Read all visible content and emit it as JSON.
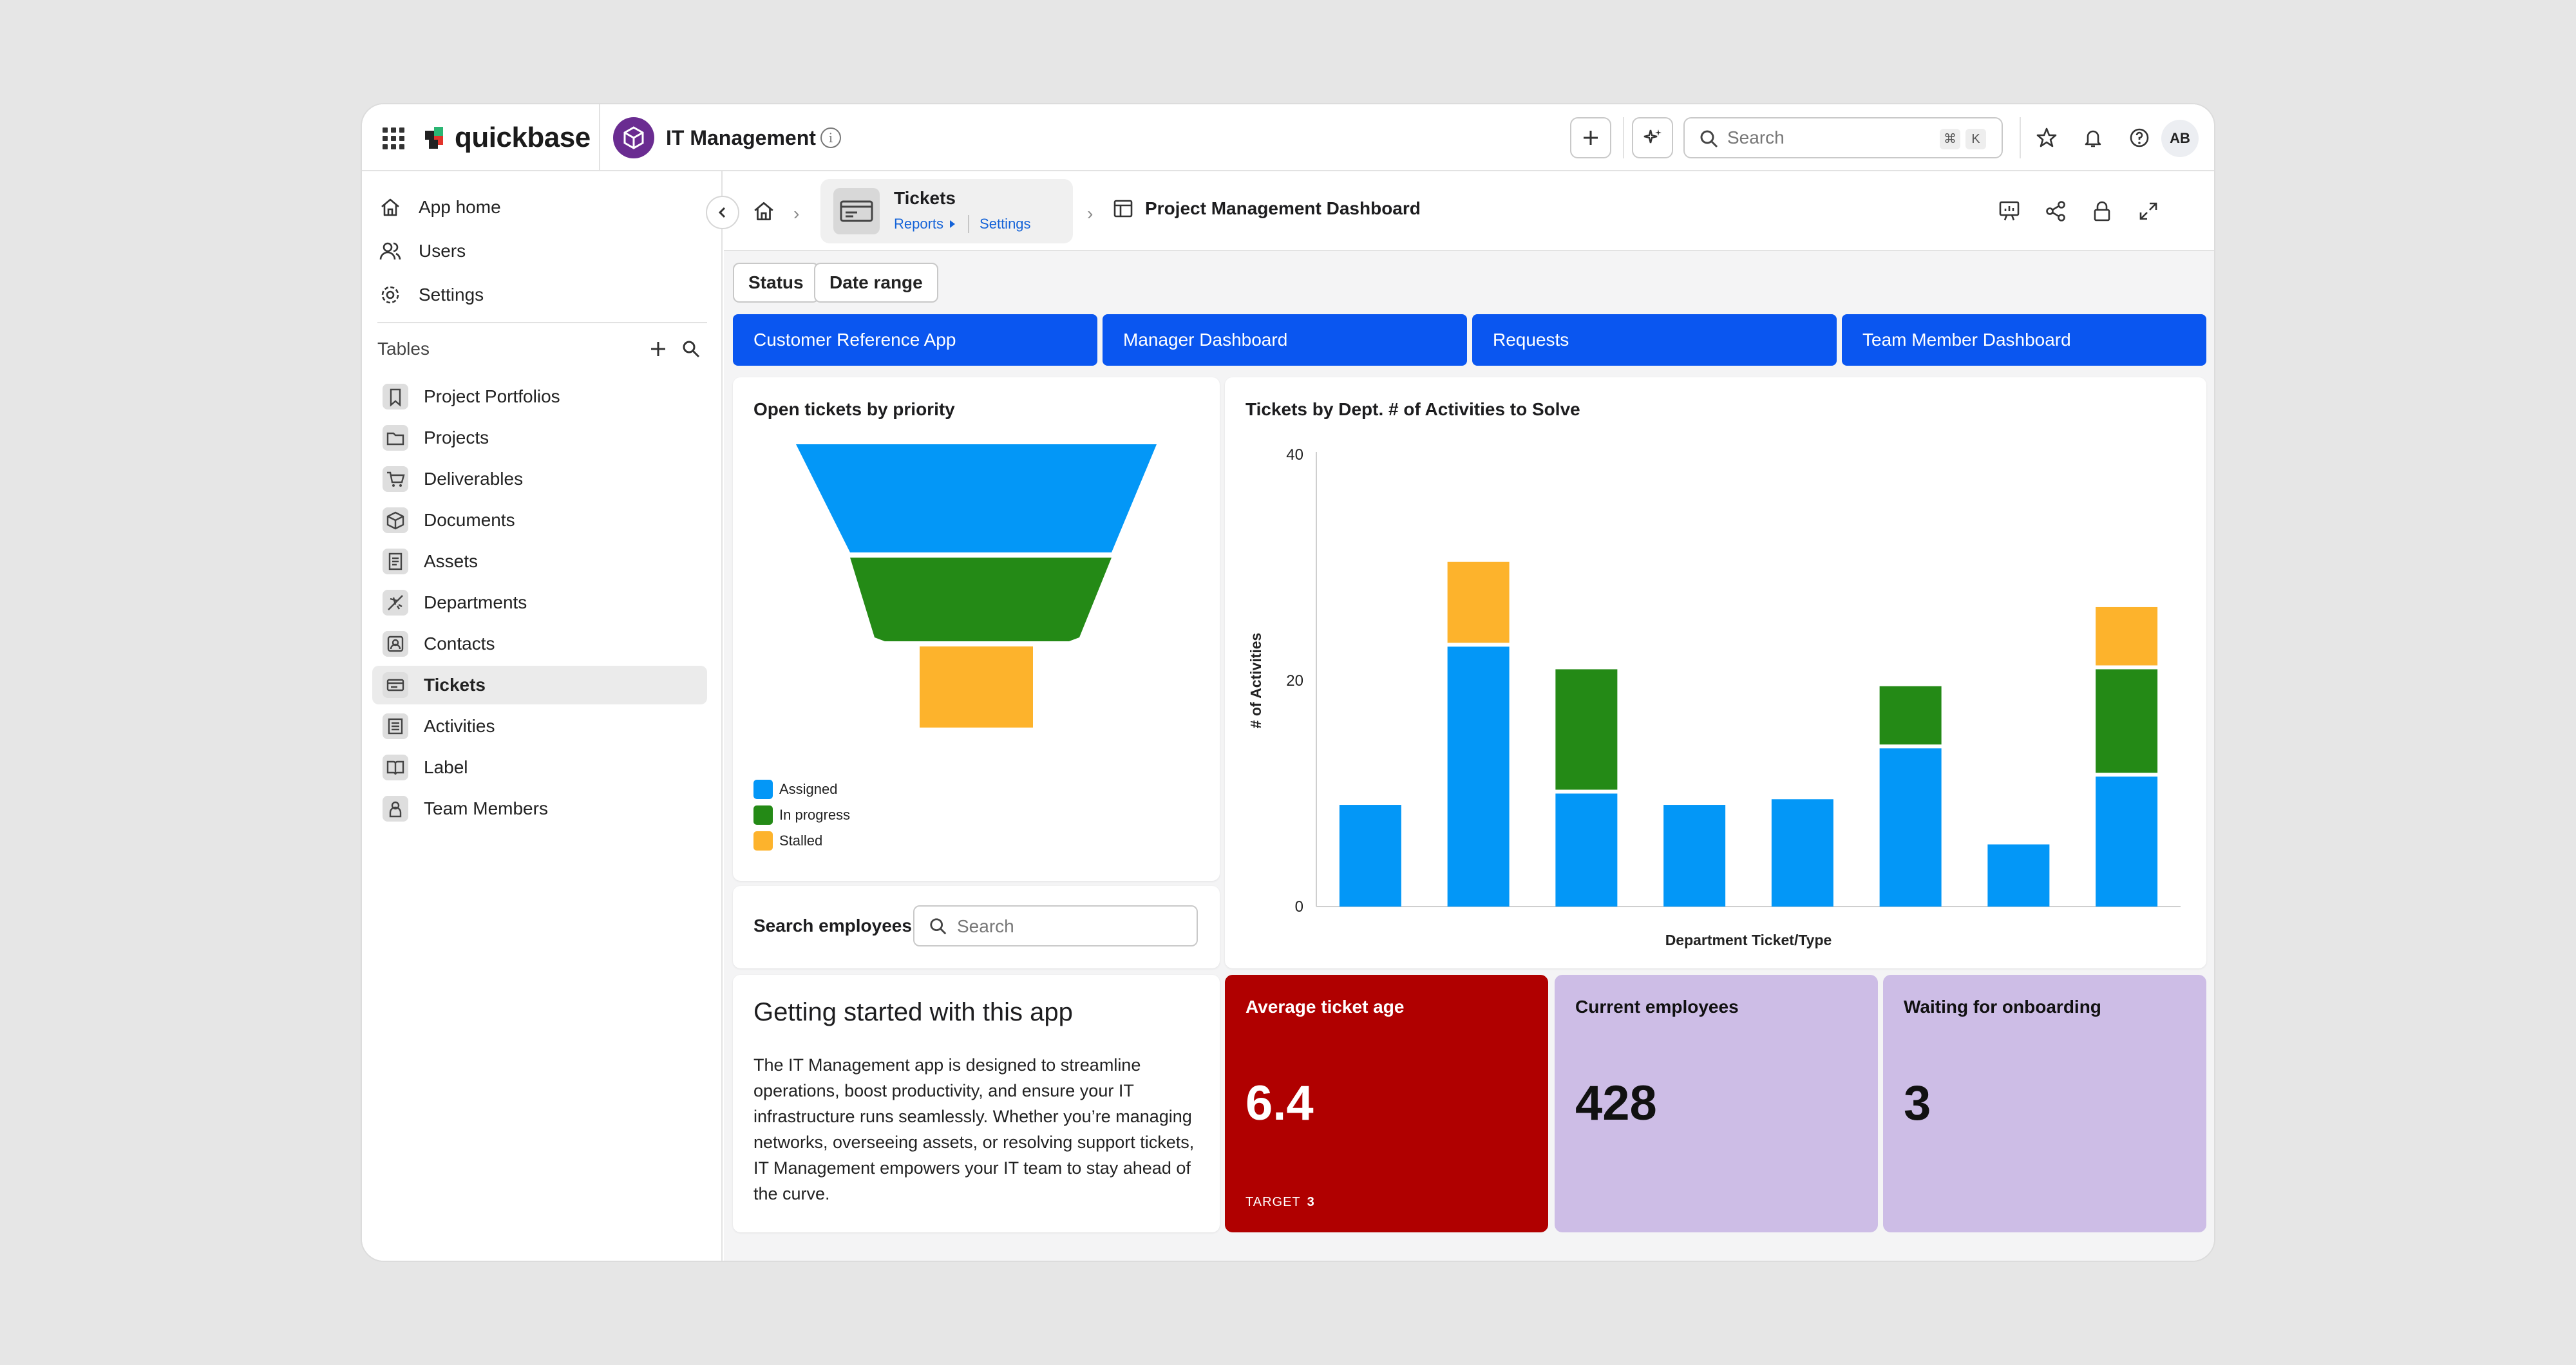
{
  "brand": {
    "name": "quickbase"
  },
  "app": {
    "title": "IT Management"
  },
  "topbar": {
    "search_placeholder": "Search",
    "kbd1": "⌘",
    "kbd2": "K",
    "avatar": "AB"
  },
  "sidebar": {
    "nav": [
      {
        "label": "App home",
        "icon": "home-icon"
      },
      {
        "label": "Users",
        "icon": "users-icon"
      },
      {
        "label": "Settings",
        "icon": "gear-icon"
      }
    ],
    "tables_label": "Tables",
    "tables": [
      {
        "label": "Project Portfolios",
        "icon": "bookmark-icon"
      },
      {
        "label": "Projects",
        "icon": "folder-icon"
      },
      {
        "label": "Deliverables",
        "icon": "cart-icon"
      },
      {
        "label": "Documents",
        "icon": "cube-icon"
      },
      {
        "label": "Assets",
        "icon": "document-icon"
      },
      {
        "label": "Departments",
        "icon": "plane-icon"
      },
      {
        "label": "Contacts",
        "icon": "contact-icon"
      },
      {
        "label": "Tickets",
        "icon": "ticket-icon",
        "active": true
      },
      {
        "label": "Activities",
        "icon": "list-icon"
      },
      {
        "label": "Label",
        "icon": "book-icon"
      },
      {
        "label": "Team Members",
        "icon": "person-icon"
      }
    ]
  },
  "breadcrumb": {
    "table": "Tickets",
    "reports_link": "Reports",
    "settings_link": "Settings",
    "dashboard": "Project Management Dashboard"
  },
  "filters": {
    "status": "Status",
    "date_range": "Date range"
  },
  "dash_buttons": [
    "Customer Reference App",
    "Manager Dashboard",
    "Requests",
    "Team Member Dashboard"
  ],
  "funnel": {
    "title": "Open tickets by priority",
    "legend": [
      {
        "label": "Assigned",
        "color": "#0397f7"
      },
      {
        "label": "In progress",
        "color": "#248a16"
      },
      {
        "label": "Stalled",
        "color": "#fdb32c"
      }
    ]
  },
  "chart_data": {
    "type": "bar",
    "stacked": true,
    "title": "Tickets by Dept. # of Activities to Solve",
    "xlabel": "Department Ticket/Type",
    "ylabel": "# of Activities",
    "ylim": [
      0,
      40
    ],
    "yticks": [
      0,
      20,
      40
    ],
    "categories": [
      "",
      "",
      "",
      "",
      "",
      "",
      "",
      ""
    ],
    "series": [
      {
        "color": "#0397f7",
        "values": [
          9,
          23,
          10,
          9,
          9.5,
          14,
          5.5,
          11.5
        ]
      },
      {
        "color": "#248a16",
        "values": [
          0,
          0,
          11,
          0,
          0,
          5.5,
          0,
          9.5
        ]
      },
      {
        "color": "#fdb32c",
        "values": [
          0,
          7.5,
          0,
          0,
          0,
          0,
          0,
          5.5
        ]
      }
    ]
  },
  "employees": {
    "label": "Search employees",
    "placeholder": "Search"
  },
  "getting_started": {
    "title": "Getting started with this app",
    "body": "The IT Management app is designed to streamline operations, boost productivity, and ensure your IT infrastructure runs seamlessly. Whether you’re managing networks, overseeing assets, or resolving support tickets, IT Management empowers your IT team to stay ahead of the curve."
  },
  "stats": [
    {
      "label": "Average ticket age",
      "value": "6.4",
      "target_label": "TARGET",
      "target_value": "3",
      "bg": "#b00000",
      "fg": "#ffffff"
    },
    {
      "label": "Current employees",
      "value": "428",
      "bg": "#cdbde6",
      "fg": "#111111"
    },
    {
      "label": "Waiting for onboarding",
      "value": "3",
      "bg": "#cdbde6",
      "fg": "#111111"
    }
  ]
}
